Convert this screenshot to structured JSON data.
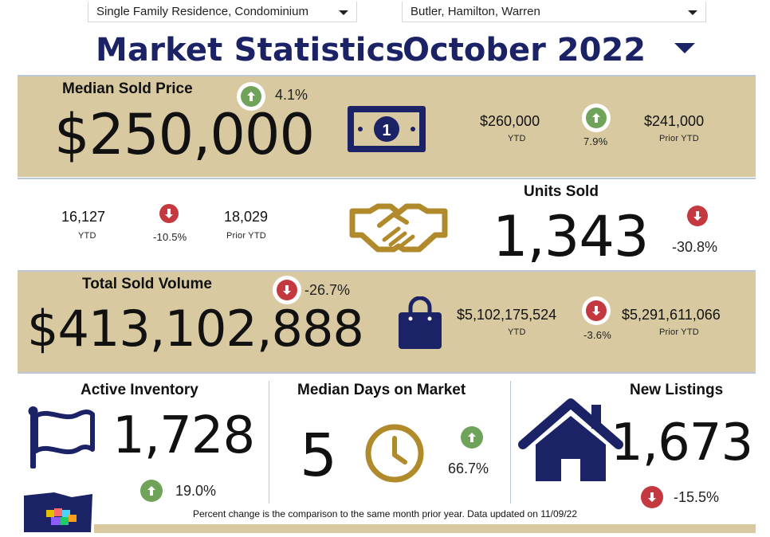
{
  "filters": {
    "property_type": "Single Family Residence, Condominium",
    "counties": "Butler, Hamilton, Warren"
  },
  "header": {
    "title": "Market Statistics",
    "month": "October 2022"
  },
  "colors": {
    "navy": "#1b2366",
    "tan": "#d8c9a0",
    "green": "#6fa35a",
    "red": "#c4393f",
    "gold": "#b08a2b"
  },
  "median_sold_price": {
    "label": "Median Sold Price",
    "value": "$250,000",
    "change_pct": "4.1%",
    "change_direction": "up",
    "ytd_value": "$260,000",
    "ytd_label": "YTD",
    "ytd_change_pct": "7.9%",
    "ytd_change_direction": "up",
    "prior_ytd_value": "$241,000",
    "prior_ytd_label": "Prior YTD",
    "icon": "money-bill-icon"
  },
  "units_sold": {
    "label": "Units Sold",
    "value": "1,343",
    "change_pct": "-30.8%",
    "change_direction": "down",
    "ytd_value": "16,127",
    "ytd_label": "YTD",
    "ytd_change_pct": "-10.5%",
    "ytd_change_direction": "down",
    "prior_ytd_value": "18,029",
    "prior_ytd_label": "Prior YTD",
    "icon": "handshake-icon"
  },
  "total_sold_volume": {
    "label": "Total Sold Volume",
    "value": "$413,102,888",
    "change_pct": "-26.7%",
    "change_direction": "down",
    "ytd_value": "$5,102,175,524",
    "ytd_label": "YTD",
    "ytd_change_pct": "-3.6%",
    "ytd_change_direction": "down",
    "prior_ytd_value": "$5,291,611,066",
    "prior_ytd_label": "Prior YTD",
    "icon": "shopping-bag-icon"
  },
  "active_inventory": {
    "label": "Active Inventory",
    "value": "1,728",
    "change_pct": "19.0%",
    "change_direction": "up",
    "icon": "flag-icon"
  },
  "median_days_on_market": {
    "label": "Median Days on Market",
    "value": "5",
    "change_pct": "66.7%",
    "change_direction": "up",
    "icon": "clock-icon"
  },
  "new_listings": {
    "label": "New Listings",
    "value": "1,673",
    "change_pct": "-15.5%",
    "change_direction": "down",
    "icon": "house-icon"
  },
  "footer": {
    "note": "Percent change is the comparison to the same month prior year. Data updated on 11/09/22"
  }
}
